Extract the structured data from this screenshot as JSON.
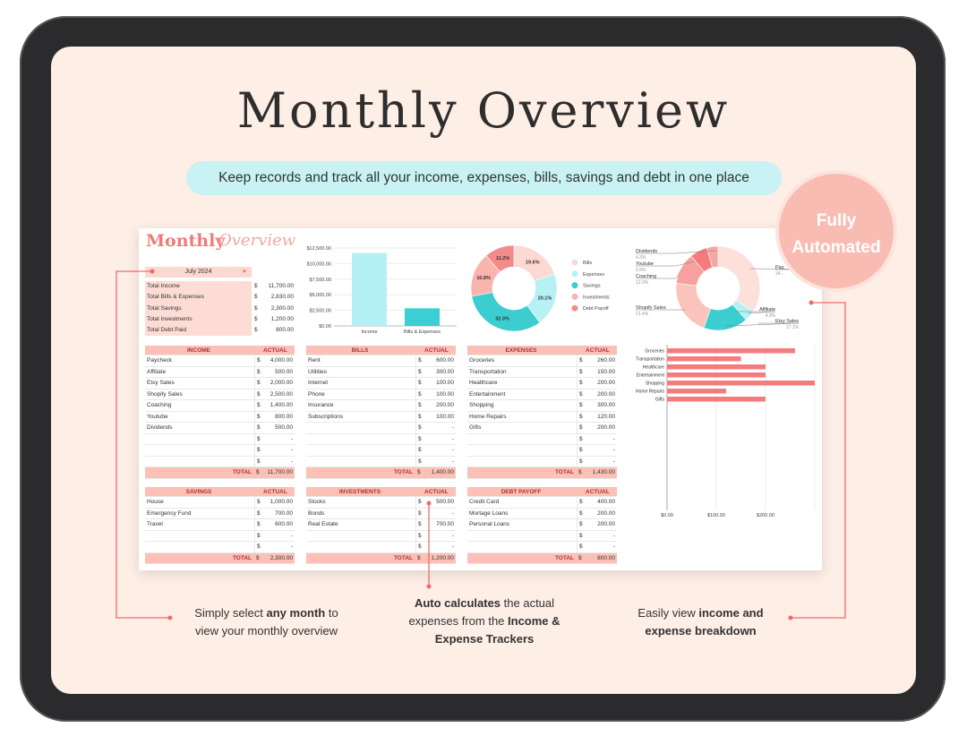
{
  "title": "Monthly Overview",
  "subtitle": "Keep records and track all your income, expenses, bills, savings and debt in one place",
  "badge": {
    "line1": "Fully",
    "line2": "Automated"
  },
  "sheet": {
    "brand_bold": "Monthly",
    "brand_script": "Overview",
    "month_select": "July 2024",
    "summary": [
      {
        "label": "Total Income",
        "value": "11,700.00"
      },
      {
        "label": "Total Bills & Expenses",
        "value": "2,830.00"
      },
      {
        "label": "Total Savings",
        "value": "2,300.00"
      },
      {
        "label": "Total Investments",
        "value": "1,200.00"
      },
      {
        "label": "Total Debt Paid",
        "value": "800.00"
      }
    ],
    "currency": "$",
    "tables": [
      {
        "title": "INCOME",
        "col": "ACTUAL",
        "rows": [
          [
            "Paycheck",
            "4,000.00"
          ],
          [
            "Affiliate",
            "500.00"
          ],
          [
            "Etsy Sales",
            "2,000.00"
          ],
          [
            "Shopify Sales",
            "2,500.00"
          ],
          [
            "Coaching",
            "1,400.00"
          ],
          [
            "Youtube",
            "800.00"
          ],
          [
            "Dividends",
            "500.00"
          ],
          [
            "",
            "-"
          ],
          [
            "",
            "-"
          ],
          [
            "",
            "-"
          ]
        ],
        "total_label": "TOTAL",
        "total": "11,700.00"
      },
      {
        "title": "BILLS",
        "col": "ACTUAL",
        "rows": [
          [
            "Rent",
            "600.00"
          ],
          [
            "Utilities",
            "300.00"
          ],
          [
            "Internet",
            "100.00"
          ],
          [
            "Phone",
            "100.00"
          ],
          [
            "Insurance",
            "200.00"
          ],
          [
            "Subscriptions",
            "100.00"
          ],
          [
            "",
            "-"
          ],
          [
            "",
            "-"
          ],
          [
            "",
            "-"
          ],
          [
            "",
            "-"
          ]
        ],
        "total_label": "TOTAL",
        "total": "1,400.00"
      },
      {
        "title": "EXPENSES",
        "col": "ACTUAL",
        "rows": [
          [
            "Groceries",
            "260.00"
          ],
          [
            "Transportation",
            "150.00"
          ],
          [
            "Healthcare",
            "200.00"
          ],
          [
            "Entertainment",
            "200.00"
          ],
          [
            "Shopping",
            "300.00"
          ],
          [
            "Home Repairs",
            "120.00"
          ],
          [
            "Gifts",
            "200.00"
          ],
          [
            "",
            "-"
          ],
          [
            "",
            "-"
          ],
          [
            "",
            "-"
          ]
        ],
        "total_label": "TOTAL",
        "total": "1,430.00"
      },
      {
        "title": "SAVINGS",
        "col": "ACTUAL",
        "rows": [
          [
            "House",
            "1,000.00"
          ],
          [
            "Emergency Fund",
            "700.00"
          ],
          [
            "Travel",
            "600.00"
          ],
          [
            "",
            "-"
          ],
          [
            "",
            "-"
          ]
        ],
        "total_label": "TOTAL",
        "total": "2,300.00"
      },
      {
        "title": "INVESTMENTS",
        "col": "ACTUAL",
        "rows": [
          [
            "Stocks",
            "500.00"
          ],
          [
            "Bonds",
            "-"
          ],
          [
            "Real Estate",
            "700.00"
          ],
          [
            "",
            "-"
          ],
          [
            "",
            "-"
          ]
        ],
        "total_label": "TOTAL",
        "total": "1,200.00"
      },
      {
        "title": "DEBT PAYOFF",
        "col": "ACTUAL",
        "rows": [
          [
            "Credit Card",
            "400.00"
          ],
          [
            "Mortage Loans",
            "200.00"
          ],
          [
            "Personal Loans",
            "200.00"
          ],
          [
            "",
            "-"
          ],
          [
            "",
            "-"
          ]
        ],
        "total_label": "TOTAL",
        "total": "800.00"
      }
    ]
  },
  "chart_data": [
    {
      "type": "bar",
      "categories": [
        "Income",
        "Bills & Expenses"
      ],
      "values": [
        11700,
        2830
      ],
      "ylim": [
        0,
        12500
      ],
      "yticks": [
        "$0.00",
        "$2,500.00",
        "$5,000.00",
        "$7,500.00",
        "$10,000.0\n0",
        "$12,500.0\n0"
      ],
      "grid": true,
      "colors": [
        "#b3f1f4",
        "#3bcfd3"
      ]
    },
    {
      "type": "pie",
      "donut": true,
      "labels": [
        "Bills",
        "Expenses",
        "Savings",
        "Investments",
        "Debt Payoff"
      ],
      "values": [
        19.6,
        20.1,
        32.3,
        16.8,
        11.2
      ],
      "data_labels": [
        "19.6%",
        "20.1%",
        "32.3%",
        "16.8%",
        "11.2%"
      ],
      "colors": [
        "#fcd9d3",
        "#b6f1f3",
        "#3ccdd1",
        "#f9b4ae",
        "#f48b8b"
      ],
      "legend": "right"
    },
    {
      "type": "pie",
      "donut": true,
      "labels": [
        "Paycheck",
        "Affiliate",
        "Etsy Sales",
        "Shopify Sales",
        "Coaching",
        "Youtube",
        "Dividends"
      ],
      "values": [
        34.2,
        4.3,
        17.1,
        21.4,
        12.0,
        6.8,
        4.3
      ],
      "label_text": [
        "Pay.",
        "Affiliate",
        "Etsy Sales",
        "Shopify Sales",
        "Coaching",
        "Youtube",
        "Dividends"
      ],
      "pct_text": [
        "34.-",
        "4.3%",
        "17.1%",
        "21.4%",
        "12.0%",
        "6.8%",
        "4.3%"
      ],
      "colors": [
        "#fde0da",
        "#b6f1f3",
        "#3ccdd1",
        "#fac4bd",
        "#f7a09f",
        "#f47c7f",
        "#f6a7a5"
      ]
    },
    {
      "type": "bar",
      "orientation": "horizontal",
      "categories": [
        "Groceries",
        "Transportation",
        "Healthcare",
        "Entertainment",
        "Shopping",
        "Home Repairs",
        "Gifts"
      ],
      "values": [
        260,
        150,
        200,
        200,
        300,
        120,
        200
      ],
      "xlim": [
        0,
        300
      ],
      "xticks": [
        "$0.00",
        "$100.00",
        "$200.00"
      ],
      "grid": true,
      "color": "#f47c7f"
    }
  ],
  "annotations": {
    "left": {
      "pre": "Simply select ",
      "bold": "any month",
      "post": " to",
      "line2": "view your monthly overview"
    },
    "middle": {
      "bold1": "Auto calculates",
      "post1": " the actual",
      "line2a": "expenses from the ",
      "bold2": "Income &",
      "bold3": "Expense Trackers"
    },
    "right": {
      "pre": "Easily view ",
      "bold1": "income and",
      "bold2": "expense breakdown"
    }
  },
  "colors": {
    "accent": "#ef6b6b",
    "screen": "#fdeee6",
    "pill": "#c8f2f3",
    "header": "#fcc0b7"
  }
}
